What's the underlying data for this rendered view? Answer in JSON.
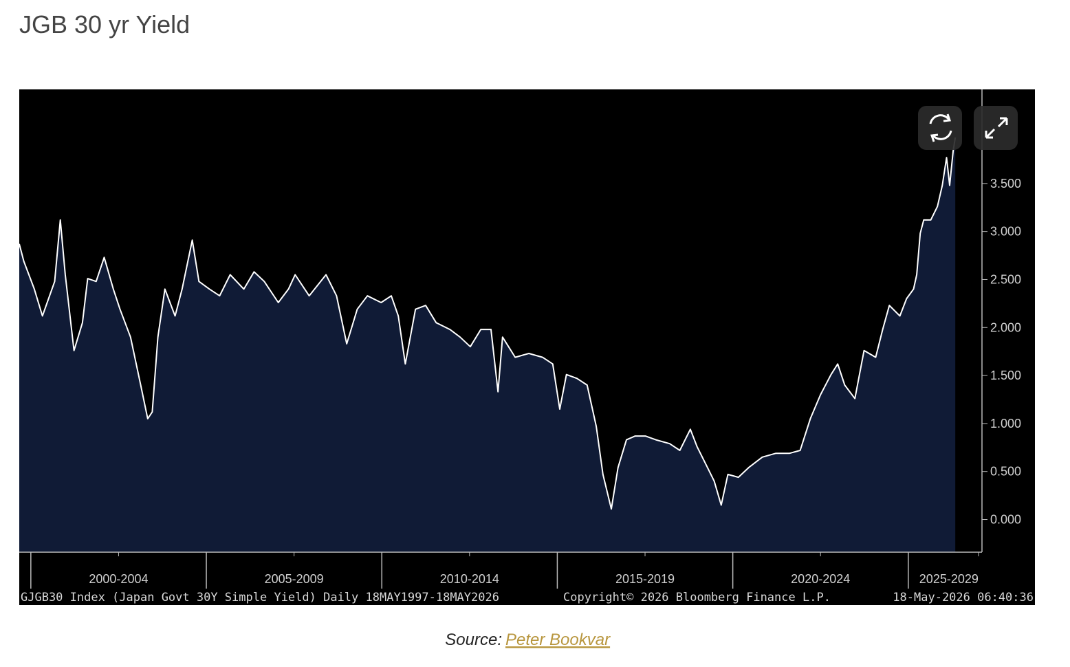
{
  "title": "JGB 30 yr Yield",
  "chart_data": {
    "type": "area",
    "series": [
      {
        "name": "GJGB30",
        "color": "#ffffff",
        "fill": "#101b36",
        "x": [
          1999.67,
          1999.8,
          2000.1,
          2000.33,
          2000.68,
          2000.84,
          2000.98,
          2001.23,
          2001.47,
          2001.62,
          2001.86,
          2002.09,
          2002.35,
          2002.54,
          2002.84,
          2003.13,
          2003.33,
          2003.46,
          2003.62,
          2003.82,
          2004.11,
          2004.31,
          2004.6,
          2004.79,
          2005.09,
          2005.38,
          2005.68,
          2006.07,
          2006.36,
          2006.65,
          2007.05,
          2007.34,
          2007.53,
          2007.93,
          2008.41,
          2008.71,
          2009.0,
          2009.3,
          2009.59,
          2009.98,
          2010.27,
          2010.47,
          2010.67,
          2010.96,
          2011.25,
          2011.55,
          2011.94,
          2012.23,
          2012.52,
          2012.82,
          2013.11,
          2013.31,
          2013.44,
          2013.8,
          2014.19,
          2014.58,
          2014.87,
          2015.07,
          2015.26,
          2015.56,
          2015.85,
          2016.11,
          2016.3,
          2016.54,
          2016.73,
          2016.97,
          2017.22,
          2017.51,
          2017.81,
          2018.2,
          2018.49,
          2018.79,
          2018.98,
          2019.28,
          2019.47,
          2019.67,
          2019.86,
          2020.16,
          2020.45,
          2020.84,
          2021.23,
          2021.62,
          2021.92,
          2022.21,
          2022.5,
          2022.8,
          2022.99,
          2023.19,
          2023.48,
          2023.74,
          2024.07,
          2024.27,
          2024.46,
          2024.76,
          2024.95,
          2025.15,
          2025.24,
          2025.34,
          2025.44,
          2025.64,
          2025.83,
          2025.97,
          2026.09,
          2026.18,
          2026.28,
          2026.34
        ],
        "values": [
          2.87,
          2.69,
          2.4,
          2.12,
          2.48,
          3.12,
          2.55,
          1.76,
          2.05,
          2.51,
          2.48,
          2.73,
          2.4,
          2.19,
          1.9,
          1.4,
          1.05,
          1.12,
          1.9,
          2.4,
          2.12,
          2.4,
          2.91,
          2.48,
          2.4,
          2.33,
          2.55,
          2.4,
          2.58,
          2.48,
          2.26,
          2.4,
          2.55,
          2.33,
          2.55,
          2.33,
          1.83,
          2.19,
          2.33,
          2.26,
          2.33,
          2.12,
          1.62,
          2.19,
          2.23,
          2.05,
          1.98,
          1.9,
          1.8,
          1.98,
          1.98,
          1.33,
          1.9,
          1.69,
          1.73,
          1.69,
          1.62,
          1.15,
          1.51,
          1.47,
          1.4,
          0.97,
          0.47,
          0.11,
          0.54,
          0.83,
          0.87,
          0.87,
          0.83,
          0.79,
          0.72,
          0.94,
          0.76,
          0.54,
          0.4,
          0.15,
          0.47,
          0.44,
          0.54,
          0.65,
          0.69,
          0.69,
          0.72,
          1.05,
          1.3,
          1.51,
          1.62,
          1.4,
          1.26,
          1.76,
          1.69,
          1.98,
          2.23,
          2.12,
          2.3,
          2.4,
          2.55,
          2.98,
          3.12,
          3.12,
          3.26,
          3.48,
          3.77,
          3.48,
          3.84,
          3.98
        ]
      }
    ],
    "xlim": [
      1999.67,
      2027.1
    ],
    "xticks": [
      {
        "value": 2002.5,
        "label": "2000-2004"
      },
      {
        "value": 2007.5,
        "label": "2005-2009"
      },
      {
        "value": 2012.5,
        "label": "2010-2014"
      },
      {
        "value": 2017.5,
        "label": "2015-2019"
      },
      {
        "value": 2022.5,
        "label": "2020-2024"
      },
      {
        "value": 2027.0,
        "label": "2025-2029"
      }
    ],
    "xticks_major": [
      2000,
      2005,
      2010,
      2015,
      2020,
      2025
    ],
    "ylim": [
      -0.34,
      4.48
    ],
    "yticks": [
      {
        "value": 0,
        "label": "0.000"
      },
      {
        "value": 0.5,
        "label": "0.500"
      },
      {
        "value": 1,
        "label": "1.000"
      },
      {
        "value": 1.5,
        "label": "1.500"
      },
      {
        "value": 2,
        "label": "2.000"
      },
      {
        "value": 2.5,
        "label": "2.500"
      },
      {
        "value": 3,
        "label": "3.000"
      },
      {
        "value": 3.5,
        "label": "3.500"
      }
    ],
    "footer": {
      "left": "GJGB30 Index (Japan Govt 30Y Simple Yield) Daily 18MAY1997-18MAY2026",
      "center": "Copyright© 2026 Bloomberg Finance L.P.",
      "right": "18-May-2026 06:40:36"
    }
  },
  "source": {
    "label": "Source:",
    "link": "Peter Bookvar"
  }
}
